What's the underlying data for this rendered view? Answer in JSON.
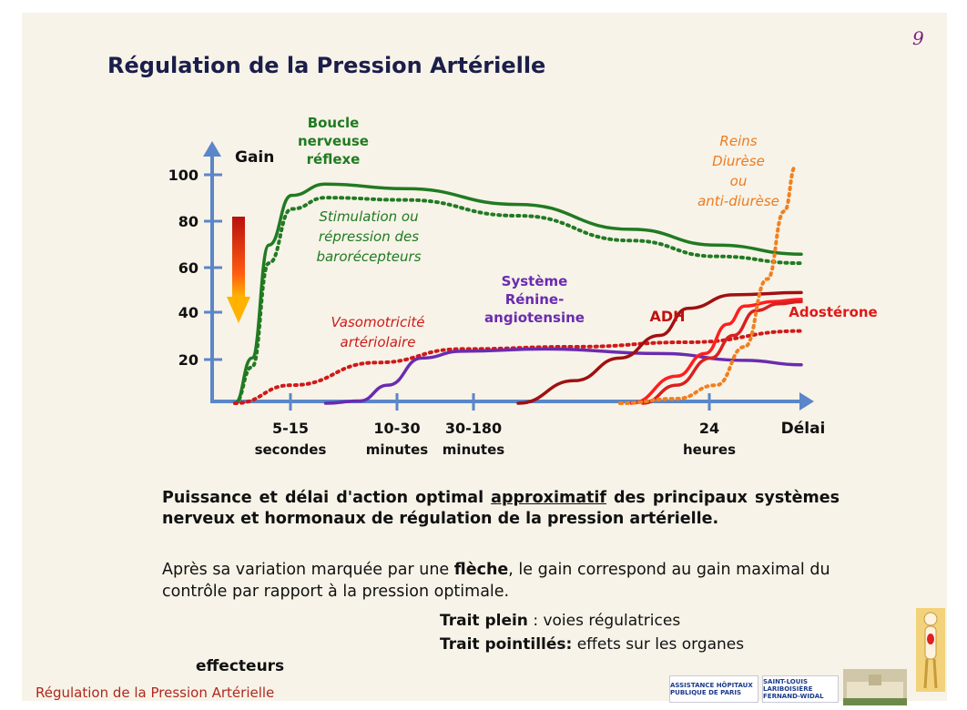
{
  "page_number": "9",
  "title": "Régulation de la Pression Artérielle",
  "footer": "Régulation de la Pression Artérielle",
  "logos": {
    "aphp": "ASSISTANCE HÔPITAUX PUBLIQUE DE PARIS",
    "hospital_group": "SAINT-LOUIS LARIBOISIÈRE FERNAND-WIDAL"
  },
  "caption": {
    "before": "Puissance et délai d'action optimal ",
    "underlined": "approximatif",
    "after": " des principaux systèmes nerveux et hormonaux de régulation de la pression artérielle."
  },
  "note": {
    "part1": "Après sa variation marquée par une ",
    "bold": "flèche",
    "part2": ", le gain correspond au gain maximal du contrôle par rapport à la pression optimale."
  },
  "legend": {
    "solid_label": "Trait plein",
    "solid_text": " : voies régulatrices",
    "dotted_label": "Trait pointillés:",
    "dotted_text": " effets sur les organes",
    "dotted_text_end": "effecteurs"
  },
  "chart_data": {
    "type": "line",
    "ylabel": "Gain",
    "xlabel": "Délai",
    "ylim": [
      0,
      110
    ],
    "yticks": [
      20,
      40,
      60,
      80,
      100
    ],
    "xticks": [
      {
        "label": "5-15",
        "sub": "secondes"
      },
      {
        "label": "10-30",
        "sub": "minutes"
      },
      {
        "label": "30-180",
        "sub": "minutes"
      },
      {
        "label": "24",
        "sub": "heures"
      }
    ],
    "series": [
      {
        "name": "Boucle nerveuse réflexe",
        "style": "solid",
        "color": "#217a22",
        "x": [
          0.0,
          0.03,
          0.06,
          0.1,
          0.16,
          0.3,
          0.5,
          0.7,
          0.85,
          1.0
        ],
        "y": [
          0,
          20,
          70,
          92,
          97,
          95,
          88,
          77,
          70,
          66
        ]
      },
      {
        "name": "Stimulation ou répression des barorécepteurs",
        "style": "dotted",
        "color": "#217a22",
        "x": [
          0.0,
          0.03,
          0.06,
          0.1,
          0.16,
          0.3,
          0.5,
          0.7,
          0.85,
          1.0
        ],
        "y": [
          0,
          16,
          62,
          86,
          91,
          90,
          83,
          72,
          65,
          62
        ]
      },
      {
        "name": "Vasomotricité artériolaire",
        "style": "dotted",
        "color": "#d01919",
        "x": [
          0.0,
          0.1,
          0.25,
          0.4,
          0.6,
          0.8,
          1.0
        ],
        "y": [
          0,
          8,
          18,
          24,
          25,
          27,
          32
        ]
      },
      {
        "name": "Système Rénine-angiotensine",
        "style": "solid",
        "color": "#6a2bb0",
        "x": [
          0.16,
          0.22,
          0.27,
          0.33,
          0.4,
          0.55,
          0.75,
          0.9,
          1.0
        ],
        "y": [
          0,
          1,
          8,
          20,
          23,
          24,
          22,
          19,
          17
        ]
      },
      {
        "name": "ADH",
        "style": "solid",
        "color": "#a01010",
        "x": [
          0.5,
          0.6,
          0.68,
          0.75,
          0.8,
          0.88,
          1.0
        ],
        "y": [
          0,
          10,
          20,
          30,
          42,
          48,
          49
        ]
      },
      {
        "name": "Adostérone",
        "style": "solid",
        "color": "#ff1e1e",
        "x": [
          0.7,
          0.78,
          0.83,
          0.87,
          0.9,
          0.95,
          1.0
        ],
        "y": [
          0,
          12,
          22,
          35,
          43,
          45,
          46
        ]
      },
      {
        "name": "Adostérone2",
        "style": "solid",
        "color": "#d82020",
        "x": [
          0.72,
          0.78,
          0.84,
          0.88,
          0.92,
          0.96,
          1.0
        ],
        "y": [
          0,
          8,
          20,
          30,
          41,
          44,
          45
        ]
      },
      {
        "name": "Reins Diurèse ou anti-diurèse",
        "style": "dotted",
        "color": "#f08020",
        "x": [
          0.68,
          0.78,
          0.85,
          0.9,
          0.94,
          0.97,
          0.99
        ],
        "y": [
          0,
          2,
          8,
          25,
          55,
          85,
          105
        ]
      }
    ],
    "annotations": [
      {
        "id": "boucle",
        "lines": [
          "Boucle",
          "nerveuse",
          "réflexe"
        ],
        "color": "#217a22"
      },
      {
        "id": "stim",
        "lines": [
          "Stimulation ou",
          "répression des",
          "barorécepteurs"
        ],
        "color": "#217a22"
      },
      {
        "id": "vaso",
        "lines": [
          "Vasomotricité",
          "artériolaire"
        ],
        "color": "#d01919"
      },
      {
        "id": "renine",
        "lines": [
          "Système",
          "Rénine-",
          "angiotensine"
        ],
        "color": "#6a2bb0"
      },
      {
        "id": "adh",
        "lines": [
          "ADH"
        ],
        "color": "#c01010"
      },
      {
        "id": "adost",
        "lines": [
          "Adostérone"
        ],
        "color": "#e01818"
      },
      {
        "id": "reins",
        "lines": [
          "Reins",
          "Diurèse",
          "ou",
          "anti-diurèse"
        ],
        "color": "#ee7a20"
      }
    ]
  }
}
